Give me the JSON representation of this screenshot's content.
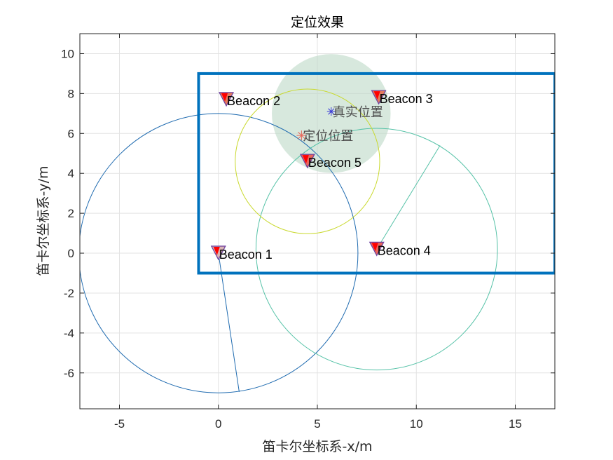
{
  "chart_data": {
    "type": "scatter",
    "title": "定位效果",
    "xlabel": "笛卡尔坐标系-x/m",
    "ylabel": "笛卡尔坐标系-y/m",
    "xlim": [
      -7,
      17
    ],
    "ylim": [
      -7.8,
      11
    ],
    "xticks": [
      -5,
      0,
      5,
      10,
      15
    ],
    "yticks": [
      -6,
      -4,
      -2,
      0,
      2,
      4,
      6,
      8,
      10
    ],
    "xtick_labels": [
      "-5",
      "0",
      "5",
      "10",
      "15"
    ],
    "ytick_labels": [
      "-6",
      "-4",
      "-2",
      "0",
      "2",
      "4",
      "6",
      "8",
      "10"
    ],
    "grid": true,
    "beacons": [
      {
        "name": "Beacon 1",
        "x": 0,
        "y": 0,
        "color": "#d9b3b3"
      },
      {
        "name": "Beacon 2",
        "x": 0.4,
        "y": 7.7,
        "color": "#e37a5e"
      },
      {
        "name": "Beacon 3",
        "x": 8.1,
        "y": 7.8,
        "color": "#e37a5e"
      },
      {
        "name": "Beacon 4",
        "x": 8.0,
        "y": 0.2,
        "color": "#e8655a"
      },
      {
        "name": "Beacon 5",
        "x": 4.5,
        "y": 4.6,
        "color": "#e8655a"
      }
    ],
    "range_circles": [
      {
        "cx": 0,
        "cy": 0,
        "r": 7.05,
        "color": "#1f6bb0",
        "radius_line_end": [
          1.05,
          -6.95
        ]
      },
      {
        "cx": 8.0,
        "cy": 0.2,
        "r": 6.1,
        "color": "#55c2a7",
        "radius_line_end": [
          11.2,
          5.4
        ]
      },
      {
        "cx": 4.5,
        "cy": 4.6,
        "r": 3.65,
        "color": "#c9d92e",
        "radius_line_end": null
      }
    ],
    "shaded_region": {
      "cx": 5.7,
      "cy": 7.0,
      "r": 3.0,
      "color": "#bcd8c6"
    },
    "true_position": {
      "label": "真实位置",
      "x": 5.7,
      "y": 7.1,
      "color": "#3b3bd6"
    },
    "estimated_position": {
      "label": "定位位置",
      "x": 4.2,
      "y": 5.9,
      "color": "#e8655a"
    },
    "boundary_box": {
      "x0": -1,
      "x1": 17,
      "y0": -1,
      "y1": 9,
      "color": "#0072bd"
    }
  }
}
